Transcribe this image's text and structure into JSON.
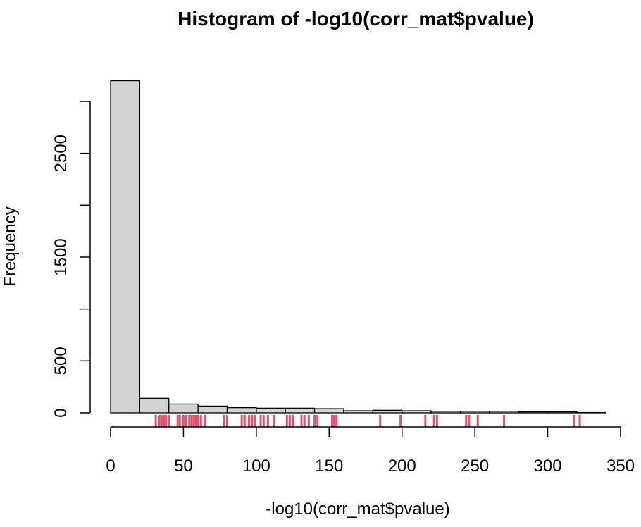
{
  "chart_data": {
    "type": "bar",
    "title": "Histogram of -log10(corr_mat$pvalue)",
    "xlabel": "-log10(corr_mat$pvalue)",
    "ylabel": "Frequency",
    "xlim": [
      0,
      350
    ],
    "ylim": [
      0,
      3200
    ],
    "x_ticks": [
      0,
      50,
      100,
      150,
      200,
      250,
      300,
      350
    ],
    "y_ticks": [
      0,
      500,
      1000,
      1500,
      2000,
      2500,
      3000
    ],
    "y_tick_labels": [
      "0",
      "500",
      "",
      "1500",
      "",
      "2500",
      ""
    ],
    "grid": false,
    "bins": [
      {
        "x0": 0,
        "x1": 20,
        "count": 3200
      },
      {
        "x0": 20,
        "x1": 40,
        "count": 140
      },
      {
        "x0": 40,
        "x1": 60,
        "count": 85
      },
      {
        "x0": 60,
        "x1": 80,
        "count": 65
      },
      {
        "x0": 80,
        "x1": 100,
        "count": 50
      },
      {
        "x0": 100,
        "x1": 120,
        "count": 45
      },
      {
        "x0": 120,
        "x1": 140,
        "count": 45
      },
      {
        "x0": 140,
        "x1": 160,
        "count": 40
      },
      {
        "x0": 160,
        "x1": 180,
        "count": 20
      },
      {
        "x0": 180,
        "x1": 200,
        "count": 25
      },
      {
        "x0": 200,
        "x1": 220,
        "count": 20
      },
      {
        "x0": 220,
        "x1": 240,
        "count": 15
      },
      {
        "x0": 240,
        "x1": 260,
        "count": 15
      },
      {
        "x0": 260,
        "x1": 280,
        "count": 15
      },
      {
        "x0": 280,
        "x1": 300,
        "count": 10
      },
      {
        "x0": 300,
        "x1": 320,
        "count": 10
      },
      {
        "x0": 320,
        "x1": 340,
        "count": 3
      }
    ],
    "rug": [
      31,
      33.5,
      35,
      36.5,
      38,
      40,
      46,
      47.5,
      50,
      52,
      54,
      55.5,
      57,
      58.5,
      60,
      62,
      65,
      78,
      80,
      90,
      92,
      95,
      97,
      99,
      103,
      105,
      108,
      112,
      121,
      123,
      125,
      131,
      133,
      136,
      140,
      142,
      152,
      153.5,
      155,
      185,
      199,
      216,
      222,
      224,
      244,
      246,
      252,
      270,
      318,
      322
    ],
    "bar_fill": "#d3d3d3",
    "bar_stroke": "#000000",
    "rug_color": "#df536b"
  }
}
